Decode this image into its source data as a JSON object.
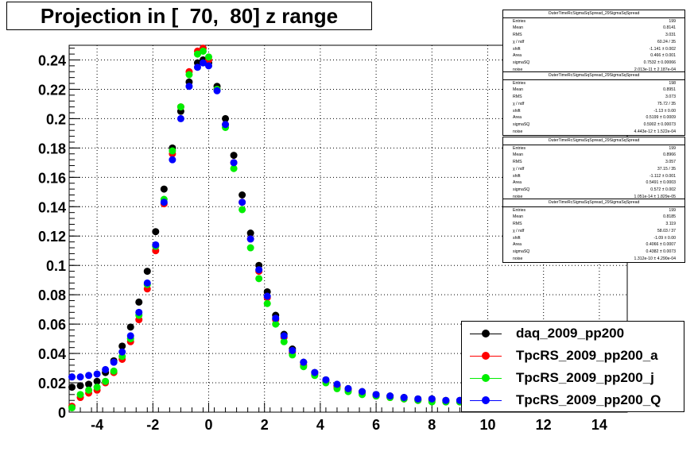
{
  "title": "Projection in [  70,  80] z range",
  "chart_data": {
    "type": "scatter",
    "xlim": [
      -5,
      15
    ],
    "ylim": [
      0,
      0.25
    ],
    "grid": true,
    "x_ticks": [
      "-4",
      "-2",
      "0",
      "2",
      "4",
      "6",
      "8",
      "10",
      "12",
      "14"
    ],
    "y_ticks": [
      "0",
      "0.02",
      "0.04",
      "0.06",
      "0.08",
      "0.1",
      "0.12",
      "0.14",
      "0.16",
      "0.18",
      "0.2",
      "0.22",
      "0.24"
    ],
    "legend_position": "bottom-right",
    "series": [
      {
        "name": "daq_2009_pp200",
        "color": "#000000",
        "x": [
          -4.9,
          -4.6,
          -4.3,
          -4.0,
          -3.7,
          -3.4,
          -3.1,
          -2.8,
          -2.5,
          -2.2,
          -1.9,
          -1.6,
          -1.3,
          -1.0,
          -0.7,
          -0.4,
          -0.2,
          0.0,
          0.3,
          0.6,
          0.9,
          1.2,
          1.5,
          1.8,
          2.1,
          2.4,
          2.7,
          3.0,
          3.4,
          3.8,
          4.2,
          4.6,
          5.0,
          5.5,
          6.0,
          6.5,
          7.0,
          7.5,
          8.0,
          8.5,
          9.0
        ],
        "y": [
          0.017,
          0.018,
          0.019,
          0.021,
          0.027,
          0.035,
          0.045,
          0.058,
          0.075,
          0.096,
          0.123,
          0.152,
          0.18,
          0.205,
          0.225,
          0.238,
          0.24,
          0.238,
          0.222,
          0.2,
          0.175,
          0.148,
          0.122,
          0.1,
          0.082,
          0.066,
          0.053,
          0.043,
          0.034,
          0.027,
          0.022,
          0.018,
          0.016,
          0.014,
          0.012,
          0.011,
          0.01,
          0.009,
          0.009,
          0.008,
          0.008
        ]
      },
      {
        "name": "TpcRS_2009_pp200_a",
        "color": "#ff0000",
        "x": [
          -4.9,
          -4.6,
          -4.3,
          -4.0,
          -3.7,
          -3.4,
          -3.1,
          -2.8,
          -2.5,
          -2.2,
          -1.9,
          -1.6,
          -1.3,
          -1.0,
          -0.7,
          -0.4,
          -0.2,
          0.0,
          0.3,
          0.6,
          0.9,
          1.2,
          1.5,
          1.8,
          2.1,
          2.4,
          2.7,
          3.0,
          3.4,
          3.8,
          4.2,
          4.6,
          5.0,
          5.5,
          6.0,
          6.5,
          7.0,
          7.5,
          8.0,
          8.5,
          9.0
        ],
        "y": [
          0.004,
          0.01,
          0.013,
          0.015,
          0.02,
          0.027,
          0.036,
          0.048,
          0.063,
          0.084,
          0.11,
          0.142,
          0.176,
          0.208,
          0.232,
          0.246,
          0.248,
          0.24,
          0.22,
          0.196,
          0.17,
          0.143,
          0.118,
          0.096,
          0.078,
          0.063,
          0.051,
          0.041,
          0.032,
          0.026,
          0.021,
          0.017,
          0.015,
          0.013,
          0.011,
          0.01,
          0.009,
          0.008,
          0.008,
          0.007,
          0.007
        ]
      },
      {
        "name": "TpcRS_2009_pp200_j",
        "color": "#00ee00",
        "x": [
          -4.9,
          -4.6,
          -4.3,
          -4.0,
          -3.7,
          -3.4,
          -3.1,
          -2.8,
          -2.5,
          -2.2,
          -1.9,
          -1.6,
          -1.3,
          -1.0,
          -0.7,
          -0.4,
          -0.2,
          0.0,
          0.3,
          0.6,
          0.9,
          1.2,
          1.5,
          1.8,
          2.1,
          2.4,
          2.7,
          3.0,
          3.4,
          3.8,
          4.2,
          4.6,
          5.0,
          5.5,
          6.0,
          6.5,
          7.0,
          7.5,
          8.0,
          8.5,
          9.0
        ],
        "y": [
          0.003,
          0.012,
          0.015,
          0.017,
          0.021,
          0.028,
          0.038,
          0.05,
          0.066,
          0.087,
          0.113,
          0.145,
          0.178,
          0.208,
          0.23,
          0.244,
          0.246,
          0.242,
          0.22,
          0.194,
          0.166,
          0.138,
          0.112,
          0.091,
          0.074,
          0.06,
          0.048,
          0.039,
          0.031,
          0.025,
          0.02,
          0.016,
          0.014,
          0.012,
          0.011,
          0.01,
          0.009,
          0.008,
          0.007,
          0.007,
          0.007
        ]
      },
      {
        "name": "TpcRS_2009_pp200_Q",
        "color": "#0000ff",
        "x": [
          -4.9,
          -4.6,
          -4.3,
          -4.0,
          -3.7,
          -3.4,
          -3.1,
          -2.8,
          -2.5,
          -2.2,
          -1.9,
          -1.6,
          -1.3,
          -1.0,
          -0.7,
          -0.4,
          -0.2,
          0.0,
          0.3,
          0.6,
          0.9,
          1.2,
          1.5,
          1.8,
          2.1,
          2.4,
          2.7,
          3.0,
          3.4,
          3.8,
          4.2,
          4.6,
          5.0,
          5.5,
          6.0,
          6.5,
          7.0,
          7.5,
          8.0,
          8.5,
          9.0
        ],
        "y": [
          0.024,
          0.024,
          0.025,
          0.026,
          0.029,
          0.034,
          0.041,
          0.052,
          0.068,
          0.088,
          0.114,
          0.143,
          0.172,
          0.2,
          0.222,
          0.235,
          0.238,
          0.236,
          0.219,
          0.196,
          0.17,
          0.143,
          0.118,
          0.097,
          0.079,
          0.064,
          0.052,
          0.042,
          0.034,
          0.027,
          0.022,
          0.019,
          0.016,
          0.014,
          0.012,
          0.011,
          0.01,
          0.009,
          0.009,
          0.008,
          0.008
        ]
      }
    ]
  },
  "stats_boxes": [
    {
      "title": "OuterTimeRcSigmaSqSpread_29SigmaSqSpread",
      "rows": [
        [
          "Entries",
          "199"
        ],
        [
          "Mean",
          "0.8141"
        ],
        [
          "RMS",
          "3.031"
        ],
        [
          "χ  / ndf",
          "60.24 / 35"
        ],
        [
          "shift",
          "-1.141 ± 0.002"
        ],
        [
          "Area",
          "0.466 ± 0.001"
        ],
        [
          "sigmaSQ",
          "0.7532 ± 0.00066"
        ],
        [
          "noise",
          "2.013e-11 ± 2.187e-04"
        ]
      ]
    },
    {
      "title": "OuterTimeRcSigmaSqSpread_29SigmaSqSpread",
      "rows": [
        [
          "Entries",
          "198"
        ],
        [
          "Mean",
          "0.8951"
        ],
        [
          "RMS",
          "3.073"
        ],
        [
          "χ  / ndf",
          "75.72 / 35"
        ],
        [
          "shift",
          "-1.13 ± 0.00"
        ],
        [
          "Area",
          "0.5199 ± 0.0009"
        ],
        [
          "sigmaSQ",
          "0.5902 ± 0.00073"
        ],
        [
          "noise",
          "4.443e-12 ± 1.522e-04"
        ]
      ]
    },
    {
      "title": "OuterTimeRcSigmaSqSpread_29SigmaSqSpread",
      "rows": [
        [
          "Entries",
          "199"
        ],
        [
          "Mean",
          "0.8966"
        ],
        [
          "RMS",
          "3.057"
        ],
        [
          "χ  / ndf",
          "37.15 / 35"
        ],
        [
          "shift",
          "-1.112 ± 0.001"
        ],
        [
          "Area",
          "0.5491 ± 0.0003"
        ],
        [
          "sigmaSQ",
          "0.572 ± 0.002"
        ],
        [
          "noise",
          "1.051e-14 ± 1.829e-05"
        ]
      ]
    },
    {
      "title": "OuterTimeRcSigmaSqSpread_29SigmaSqSpread",
      "rows": [
        [
          "Entries",
          "199"
        ],
        [
          "Mean",
          "0.8185"
        ],
        [
          "RMS",
          "3.119"
        ],
        [
          "χ  / ndf",
          "58.03 / 37"
        ],
        [
          "shift",
          "-1.09 ± 0.00"
        ],
        [
          "Area",
          "0.4066 ± 0.0007"
        ],
        [
          "sigmaSQ",
          "0.4382 ± 0.0073"
        ],
        [
          "noise",
          "1.312e-10 ± 4.290e-04"
        ]
      ]
    }
  ]
}
